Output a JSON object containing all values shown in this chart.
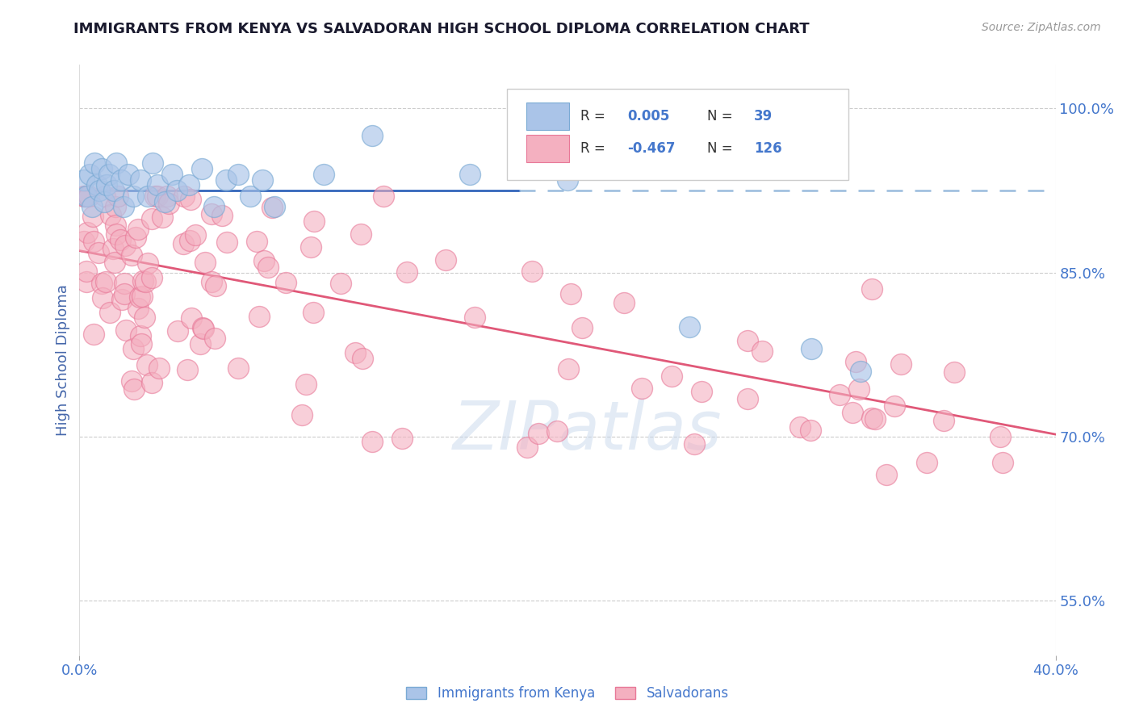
{
  "title": "IMMIGRANTS FROM KENYA VS SALVADORAN HIGH SCHOOL DIPLOMA CORRELATION CHART",
  "source": "Source: ZipAtlas.com",
  "ylabel": "High School Diploma",
  "xlim": [
    0.0,
    40.0
  ],
  "ylim": [
    50.0,
    104.0
  ],
  "x_tick_labels": [
    "0.0%",
    "40.0%"
  ],
  "y_ticks_right": [
    55.0,
    70.0,
    85.0,
    100.0
  ],
  "y_tick_labels_right": [
    "55.0%",
    "70.0%",
    "85.0%",
    "100.0%"
  ],
  "kenya_color": "#aac4e8",
  "kenya_edge_color": "#7aaad4",
  "salvador_color": "#f4b0c0",
  "salvador_edge_color": "#e87898",
  "kenya_trend_color": "#3366bb",
  "kenya_trend_dash_color": "#99bbdd",
  "salvador_trend_color": "#e05878",
  "watermark": "ZIPatlas",
  "legend_R_kenya": "0.005",
  "legend_N_kenya": "39",
  "legend_R_salvador": "-0.467",
  "legend_N_salvador": "126",
  "background_color": "#ffffff",
  "grid_color": "#cccccc",
  "title_color": "#1a1a2e",
  "axis_label_color": "#4466aa",
  "tick_label_color": "#4477cc"
}
